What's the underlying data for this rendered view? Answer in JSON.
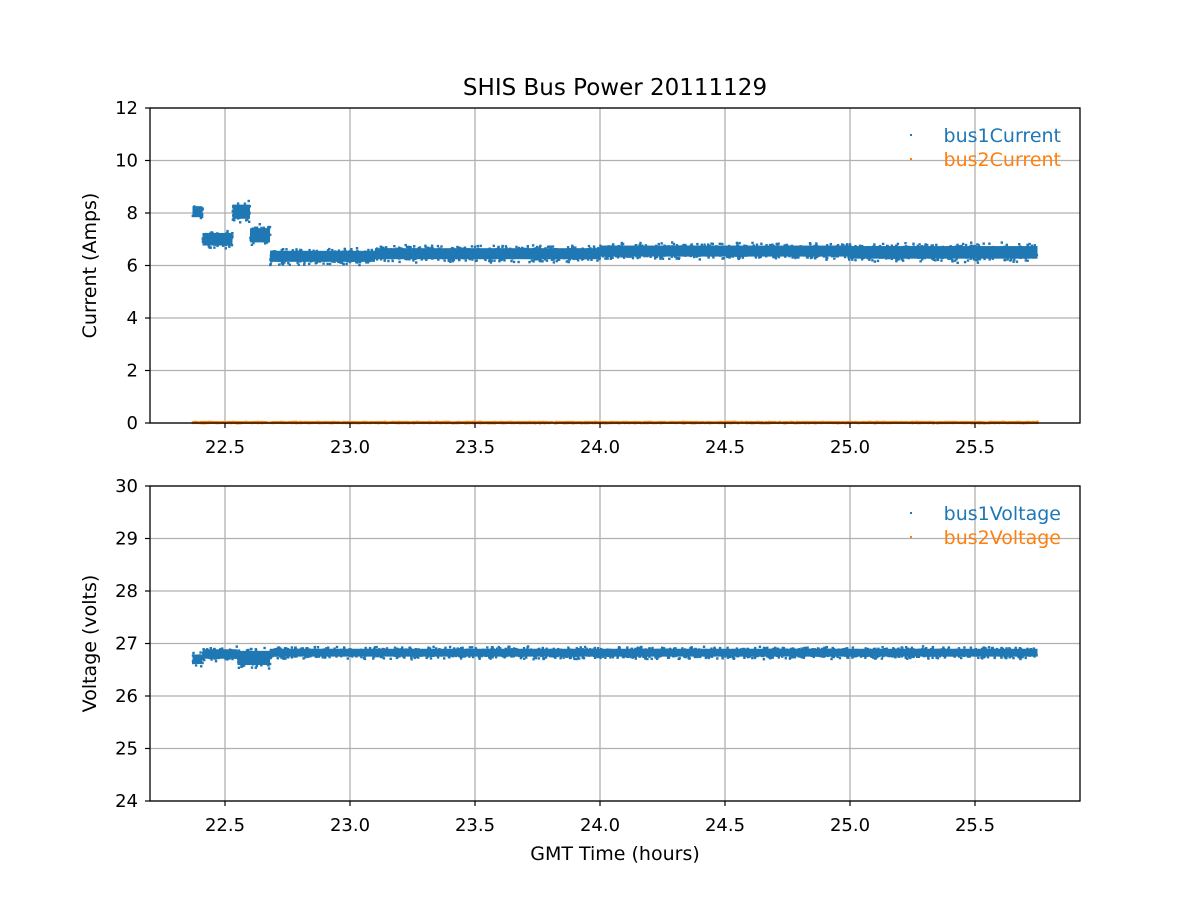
{
  "figure": {
    "title": "SHIS Bus Power 20111129",
    "xlabel": "GMT Time (hours)"
  },
  "colors": {
    "series1": "#1f77b4",
    "series2": "#ff7f0e",
    "grid": "#b0b0b0"
  },
  "chart_data": [
    {
      "type": "scatter",
      "title": "SHIS Bus Power 20111129",
      "xlabel": "",
      "ylabel": "Current (Amps)",
      "xlim": [
        22.2,
        25.92
      ],
      "ylim": [
        0,
        12
      ],
      "xticks": [
        "22.5",
        "23.0",
        "23.5",
        "24.0",
        "24.5",
        "25.0",
        "25.5"
      ],
      "yticks": [
        "0",
        "2",
        "4",
        "6",
        "8",
        "10",
        "12"
      ],
      "grid": true,
      "legend": "top-right",
      "series": [
        {
          "name": "bus1Current",
          "color": "#1f77b4",
          "bands": [
            {
              "x": [
                22.37,
                22.41
              ],
              "y": [
                7.7,
                8.4
              ]
            },
            {
              "x": [
                22.41,
                22.53
              ],
              "y": [
                6.6,
                7.4
              ]
            },
            {
              "x": [
                22.53,
                22.6
              ],
              "y": [
                7.6,
                8.5
              ]
            },
            {
              "x": [
                22.6,
                22.68
              ],
              "y": [
                6.7,
                7.6
              ]
            },
            {
              "x": [
                22.68,
                23.1
              ],
              "y": [
                6.0,
                6.7
              ]
            },
            {
              "x": [
                23.1,
                24.0
              ],
              "y": [
                6.1,
                6.8
              ]
            },
            {
              "x": [
                24.0,
                25.0
              ],
              "y": [
                6.2,
                6.9
              ]
            },
            {
              "x": [
                25.0,
                25.75
              ],
              "y": [
                6.1,
                6.9
              ]
            }
          ]
        },
        {
          "name": "bus2Current",
          "color": "#ff7f0e",
          "bands": [
            {
              "x": [
                22.37,
                25.75
              ],
              "y": [
                0.0,
                0.05
              ]
            }
          ]
        }
      ]
    },
    {
      "type": "scatter",
      "title": "",
      "xlabel": "GMT Time (hours)",
      "ylabel": "Voltage (volts)",
      "xlim": [
        22.2,
        25.92
      ],
      "ylim": [
        24,
        30
      ],
      "xticks": [
        "22.5",
        "23.0",
        "23.5",
        "24.0",
        "24.5",
        "25.0",
        "25.5"
      ],
      "yticks": [
        "24",
        "25",
        "26",
        "27",
        "28",
        "29",
        "30"
      ],
      "grid": true,
      "legend": "top-right",
      "series": [
        {
          "name": "bus1Voltage",
          "color": "#1f77b4",
          "bands": [
            {
              "x": [
                22.37,
                22.41
              ],
              "y": [
                26.55,
                26.85
              ]
            },
            {
              "x": [
                22.41,
                22.55
              ],
              "y": [
                26.65,
                26.95
              ]
            },
            {
              "x": [
                22.55,
                22.68
              ],
              "y": [
                26.5,
                26.95
              ]
            },
            {
              "x": [
                22.68,
                25.75
              ],
              "y": [
                26.7,
                26.95
              ]
            }
          ]
        },
        {
          "name": "bus2Voltage",
          "color": "#ff7f0e",
          "bands": []
        }
      ]
    }
  ]
}
